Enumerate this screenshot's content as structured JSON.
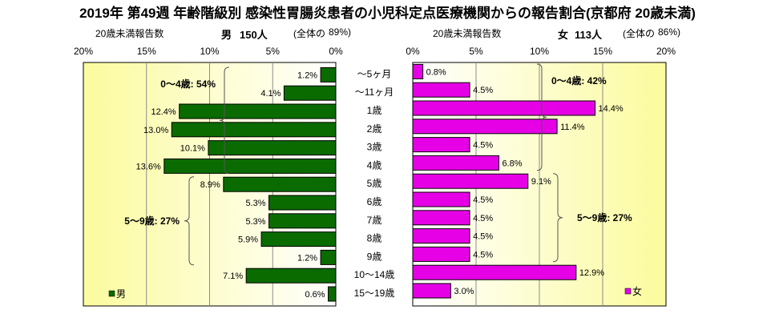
{
  "title": "2019年 第49週 年齢階級別 感染性胃腸炎患者の小児科定点医療機関からの報告割合(京都府 20歳未満)",
  "male_header": {
    "caption": "20歳未満報告数",
    "sex": "男",
    "count": "150人",
    "total_label": "(全体の",
    "total_pct": "89%)"
  },
  "female_header": {
    "caption": "20歳未満報告数",
    "sex": "女",
    "count": "113人",
    "total_label": "(全体の",
    "total_pct": "86%)"
  },
  "colors": {
    "male": "#0a6b00",
    "female": "#e600e6",
    "bg_yellow": "#fbfb9e",
    "bg_white": "#ffffff"
  },
  "chart_data": {
    "type": "bar",
    "orientation": "horizontal",
    "layout": "population-pyramid",
    "categories": [
      "～5ヶ月",
      "～11ヶ月",
      "1歳",
      "2歳",
      "3歳",
      "4歳",
      "5歳",
      "6歳",
      "7歳",
      "8歳",
      "9歳",
      "10～14歳",
      "15～19歳"
    ],
    "series": [
      {
        "name": "男",
        "side": "left",
        "values": [
          1.2,
          4.1,
          12.4,
          13.0,
          10.1,
          13.6,
          8.9,
          5.3,
          5.3,
          5.9,
          1.2,
          7.1,
          0.6
        ]
      },
      {
        "name": "女",
        "side": "right",
        "values": [
          0.8,
          4.5,
          14.4,
          11.4,
          4.5,
          6.8,
          9.1,
          4.5,
          4.5,
          4.5,
          4.5,
          12.9,
          3.0
        ]
      }
    ],
    "value_labels": {
      "男": [
        "1.2%",
        "4.1%",
        "12.4%",
        "13.0%",
        "10.1%",
        "13.6%",
        "8.9%",
        "5.3%",
        "5.3%",
        "5.9%",
        "1.2%",
        "7.1%",
        "0.6%"
      ],
      "女": [
        "0.8%",
        "4.5%",
        "14.4%",
        "11.4%",
        "4.5%",
        "6.8%",
        "9.1%",
        "4.5%",
        "4.5%",
        "4.5%",
        "4.5%",
        "12.9%",
        "3.0%"
      ]
    },
    "x_ticks": [
      0,
      5,
      10,
      15,
      20
    ],
    "x_tick_labels": [
      "0%",
      "5%",
      "10%",
      "15%",
      "20%"
    ],
    "xlim": [
      0,
      20
    ],
    "grid": true,
    "legend": [
      {
        "label": "男",
        "placement": "bottom-left"
      },
      {
        "label": "女",
        "placement": "bottom-right"
      }
    ],
    "groups": [
      {
        "side": "male",
        "label": "0～4歳: 54%",
        "from": 0,
        "to": 5
      },
      {
        "side": "male",
        "label": "5～9歳: 27%",
        "from": 6,
        "to": 10
      },
      {
        "side": "female",
        "label": "0～4歳: 42%",
        "from": 0,
        "to": 5
      },
      {
        "side": "female",
        "label": "5～9歳: 27%",
        "from": 6,
        "to": 10
      }
    ]
  }
}
